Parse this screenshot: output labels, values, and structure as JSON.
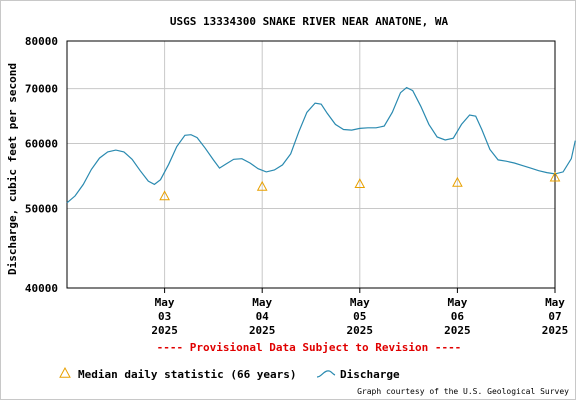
{
  "chart_data": {
    "type": "line",
    "title": "USGS 13334300 SNAKE RIVER NEAR ANATONE, WA",
    "ylabel": "Discharge, cubic feet per second",
    "xlabel": "",
    "y_scale": "log",
    "ylim": [
      40000,
      80000
    ],
    "y_ticks": [
      40000,
      50000,
      60000,
      70000,
      80000
    ],
    "y_tick_labels": [
      "40000",
      "50000",
      "60000",
      "70000",
      "80000"
    ],
    "xlim": [
      "2025-05-02T12:00",
      "2025-05-07T12:00"
    ],
    "x_ticks": [
      {
        "x": "2025-05-03T12:00",
        "month": "May",
        "day": "03",
        "year": "2025"
      },
      {
        "x": "2025-05-04T12:00",
        "month": "May",
        "day": "04",
        "year": "2025"
      },
      {
        "x": "2025-05-05T12:00",
        "month": "May",
        "day": "05",
        "year": "2025"
      },
      {
        "x": "2025-05-06T12:00",
        "month": "May",
        "day": "06",
        "year": "2025"
      },
      {
        "x": "2025-05-07T12:00",
        "month": "May",
        "day": "07",
        "year": "2025"
      }
    ],
    "grid": true,
    "provisional_note": "---- Provisional Data Subject to Revision ----",
    "credit": "Graph courtesy of the U.S. Geological Survey",
    "colors": {
      "discharge": "#2a8ab0",
      "median": "#e8a000",
      "provisional": "#e00000",
      "grid": "#c8c8c8"
    },
    "series": [
      {
        "name": "Discharge",
        "marker": "line",
        "points": [
          [
            "2025-05-02T12:00",
            50800
          ],
          [
            "2025-05-02T14:00",
            51800
          ],
          [
            "2025-05-02T16:00",
            53500
          ],
          [
            "2025-05-02T18:00",
            55800
          ],
          [
            "2025-05-02T20:00",
            57600
          ],
          [
            "2025-05-02T22:00",
            58600
          ],
          [
            "2025-05-03T00:00",
            58900
          ],
          [
            "2025-05-03T02:00",
            58600
          ],
          [
            "2025-05-03T04:00",
            57400
          ],
          [
            "2025-05-03T06:00",
            55600
          ],
          [
            "2025-05-03T08:00",
            54000
          ],
          [
            "2025-05-03T09:30",
            53500
          ],
          [
            "2025-05-03T11:00",
            54200
          ],
          [
            "2025-05-03T13:00",
            56600
          ],
          [
            "2025-05-03T15:00",
            59500
          ],
          [
            "2025-05-03T17:00",
            61400
          ],
          [
            "2025-05-03T18:30",
            61500
          ],
          [
            "2025-05-03T20:00",
            61000
          ],
          [
            "2025-05-03T22:00",
            59200
          ],
          [
            "2025-05-04T00:00",
            57300
          ],
          [
            "2025-05-04T01:30",
            56000
          ],
          [
            "2025-05-04T03:00",
            56600
          ],
          [
            "2025-05-04T05:00",
            57400
          ],
          [
            "2025-05-04T07:00",
            57500
          ],
          [
            "2025-05-04T09:00",
            56800
          ],
          [
            "2025-05-04T11:00",
            55900
          ],
          [
            "2025-05-04T13:00",
            55400
          ],
          [
            "2025-05-04T15:00",
            55700
          ],
          [
            "2025-05-04T17:00",
            56500
          ],
          [
            "2025-05-04T19:00",
            58300
          ],
          [
            "2025-05-04T21:00",
            62000
          ],
          [
            "2025-05-04T23:00",
            65500
          ],
          [
            "2025-05-05T01:00",
            67200
          ],
          [
            "2025-05-05T02:30",
            67000
          ],
          [
            "2025-05-05T04:00",
            65300
          ],
          [
            "2025-05-05T06:00",
            63300
          ],
          [
            "2025-05-05T08:00",
            62400
          ],
          [
            "2025-05-05T10:00",
            62300
          ],
          [
            "2025-05-05T12:00",
            62600
          ],
          [
            "2025-05-05T14:00",
            62700
          ],
          [
            "2025-05-05T16:00",
            62700
          ],
          [
            "2025-05-05T18:00",
            63000
          ],
          [
            "2025-05-05T20:00",
            65500
          ],
          [
            "2025-05-05T22:00",
            69200
          ],
          [
            "2025-05-05T23:30",
            70200
          ],
          [
            "2025-05-06T01:00",
            69600
          ],
          [
            "2025-05-06T03:00",
            66600
          ],
          [
            "2025-05-06T05:00",
            63300
          ],
          [
            "2025-05-06T07:00",
            61100
          ],
          [
            "2025-05-06T09:00",
            60600
          ],
          [
            "2025-05-06T11:00",
            60900
          ],
          [
            "2025-05-06T13:00",
            63300
          ],
          [
            "2025-05-06T15:00",
            65000
          ],
          [
            "2025-05-06T16:30",
            64800
          ],
          [
            "2025-05-06T18:00",
            62400
          ],
          [
            "2025-05-06T20:00",
            59000
          ],
          [
            "2025-05-06T22:00",
            57300
          ],
          [
            "2025-05-07T00:00",
            57100
          ],
          [
            "2025-05-07T02:00",
            56800
          ],
          [
            "2025-05-07T04:00",
            56400
          ],
          [
            "2025-05-07T06:00",
            56000
          ],
          [
            "2025-05-07T08:00",
            55600
          ],
          [
            "2025-05-07T10:00",
            55300
          ],
          [
            "2025-05-07T12:00",
            55100
          ],
          [
            "2025-05-07T14:00",
            55400
          ],
          [
            "2025-05-07T16:00",
            57500
          ],
          [
            "2025-05-07T17:00",
            60500
          ]
        ]
      },
      {
        "name": "Median daily statistic (66 years)",
        "marker": "triangle",
        "points": [
          [
            "2025-05-03T12:00",
            51800
          ],
          [
            "2025-05-04T12:00",
            53200
          ],
          [
            "2025-05-05T12:00",
            53600
          ],
          [
            "2025-05-06T12:00",
            53800
          ],
          [
            "2025-05-07T12:00",
            54600
          ]
        ]
      }
    ]
  }
}
